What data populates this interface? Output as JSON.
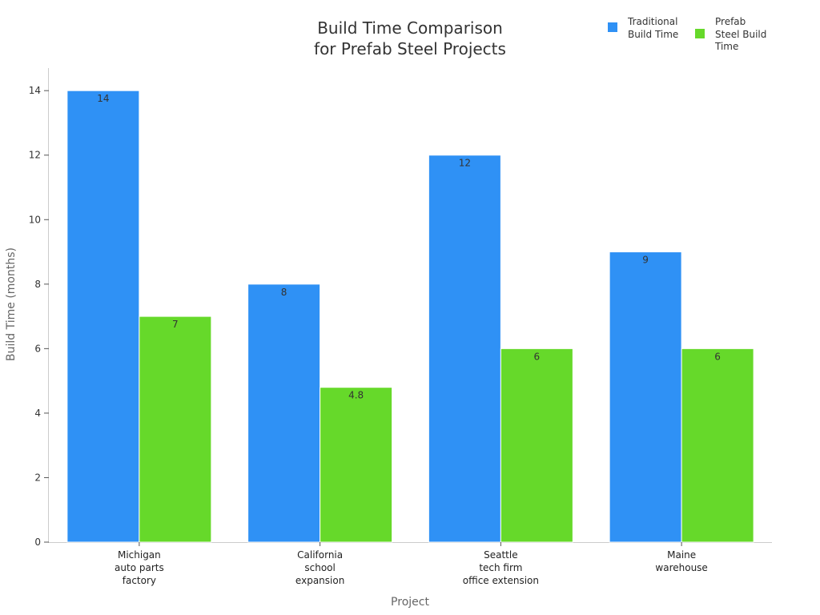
{
  "chart_data": {
    "type": "bar",
    "title": [
      "Build Time Comparison",
      "for Prefab Steel Projects"
    ],
    "xlabel": "Project",
    "ylabel": "Build Time (months)",
    "ylim": [
      0,
      14.7
    ],
    "yticks": [
      0,
      2,
      4,
      6,
      8,
      10,
      12,
      14
    ],
    "categories": [
      [
        "Michigan",
        "auto parts",
        "factory"
      ],
      [
        "California",
        "school",
        "expansion"
      ],
      [
        "Seattle",
        "tech firm",
        "office extension"
      ],
      [
        "Maine",
        "warehouse"
      ]
    ],
    "series": [
      {
        "name": [
          "Traditional",
          "Build Time"
        ],
        "color": "#2f91f5",
        "values": [
          14,
          8,
          12,
          9
        ],
        "labels": [
          "14",
          "8",
          "12",
          "9"
        ]
      },
      {
        "name": [
          "Prefab",
          "Steel Build",
          "Time"
        ],
        "color": "#66d92a",
        "values": [
          7,
          4.8,
          6,
          6
        ],
        "labels": [
          "7",
          "4.8",
          "6",
          "6"
        ]
      }
    ],
    "legend": "top-right",
    "grid": false
  }
}
